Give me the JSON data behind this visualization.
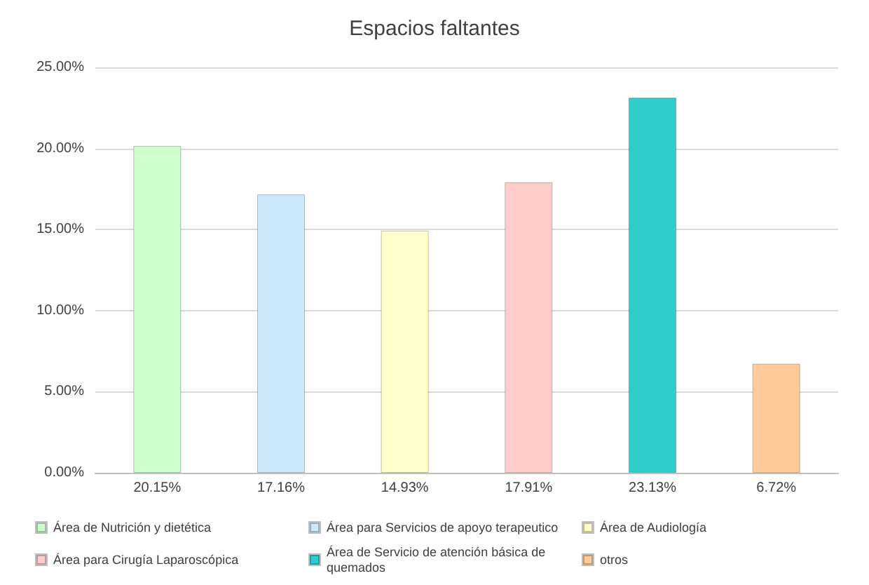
{
  "chart_data": {
    "type": "bar",
    "title": "Espacios faltantes",
    "categories": [
      null,
      null,
      null,
      null,
      null,
      null
    ],
    "series": [
      {
        "name": "Área de Nutrición y dietética",
        "color": "#ccffcc",
        "values": [
          20.15,
          null,
          null,
          null,
          null,
          null
        ],
        "value_labels": [
          "20.15%",
          null,
          null,
          null,
          null,
          null
        ]
      },
      {
        "name": "Área para Servicios de apoyo terapeutico",
        "color": "#cce8fb",
        "values": [
          null,
          17.16,
          null,
          null,
          null,
          null
        ],
        "value_labels": [
          null,
          "17.16%",
          null,
          null,
          null,
          null
        ]
      },
      {
        "name": "Área de Audiología",
        "color": "#ffffcc",
        "values": [
          null,
          null,
          14.93,
          null,
          null,
          null
        ],
        "value_labels": [
          null,
          null,
          "14.93%",
          null,
          null,
          null
        ]
      },
      {
        "name": "Área para Cirugía Laparoscópica",
        "color": "#ffcccc",
        "values": [
          null,
          null,
          null,
          17.91,
          null,
          null
        ],
        "value_labels": [
          null,
          null,
          null,
          "17.91%",
          null,
          null
        ]
      },
      {
        "name": "Área de Servicio de atención básica de quemados",
        "color": "#33cccc",
        "values": [
          null,
          null,
          null,
          null,
          23.13,
          null
        ],
        "value_labels": [
          null,
          null,
          null,
          null,
          "23.13%",
          null
        ]
      },
      {
        "name": "otros",
        "color": "#ffcc99",
        "values": [
          null,
          null,
          null,
          null,
          null,
          6.72
        ],
        "value_labels": [
          null,
          null,
          null,
          null,
          null,
          "6.72%"
        ]
      }
    ],
    "ylim": [
      0,
      25
    ],
    "yticks": [
      {
        "value": 0,
        "label": "0.00%"
      },
      {
        "value": 5,
        "label": "5.00%"
      },
      {
        "value": 10,
        "label": "10.00%"
      },
      {
        "value": 15,
        "label": "15.00%"
      },
      {
        "value": 20,
        "label": "20.00%"
      },
      {
        "value": 25,
        "label": "25.00%"
      }
    ],
    "grid": true,
    "legend": "bottom"
  }
}
